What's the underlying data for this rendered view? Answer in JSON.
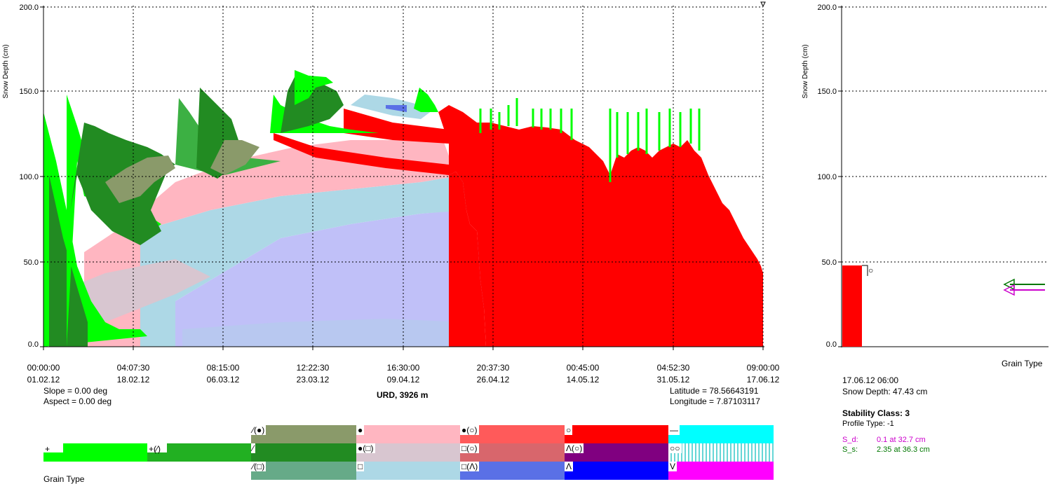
{
  "main_chart": {
    "ylabel": "Snow Depth (cm)",
    "yticks": [
      "200.0",
      "150.0",
      "100.0",
      "50.0",
      "0.0"
    ],
    "xticks_time": [
      "00:00:00",
      "04:07:30",
      "08:15:00",
      "12:22:30",
      "16:30:00",
      "20:37:30",
      "00:45:00",
      "04:52:30",
      "09:00:00"
    ],
    "xticks_date": [
      "01.02.12",
      "18.02.12",
      "06.03.12",
      "23.03.12",
      "09.04.12",
      "26.04.12",
      "14.05.12",
      "31.05.12",
      "17.06.12"
    ],
    "slope": "Slope = 0.00 deg",
    "aspect": "Aspect = 0.00 deg",
    "station": "URD, 3926 m",
    "latitude": "Latitude = 78.56643191",
    "longitude": "Longitude = 7.87103117"
  },
  "profile_chart": {
    "ylabel": "Snow Depth (cm)",
    "yticks": [
      "200.0",
      "150.0",
      "100.0",
      "50.0",
      "0.0"
    ],
    "xlabel": "Grain Type",
    "date": "17.06.12 06:00",
    "snow_depth": "Snow Depth: 47.43 cm",
    "stability_class": "Stability Class: 3",
    "profile_type": "Profile Type: -1",
    "sd_label": "S_d:",
    "sd_value": "0.1 at 32.7 cm",
    "ss_label": "S_s:",
    "ss_value": "2.35 at 36.3 cm",
    "layer_grain": "○"
  },
  "legend": {
    "title": "Grain Type",
    "entries": [
      {
        "symbol": "+",
        "color": "#00ff00"
      },
      {
        "symbol": "+(⁄)",
        "color": "#22b022"
      },
      {
        "symbol": "⁄(●)",
        "color": "#8a9a6a"
      },
      {
        "symbol": "⁄",
        "color": "#228b22"
      },
      {
        "symbol": "⁄(□)",
        "color": "#66aa88"
      },
      {
        "symbol": "●",
        "color": "#ffb6c1"
      },
      {
        "symbol": "●(□)",
        "color": "#d8c6d0"
      },
      {
        "symbol": "□",
        "color": "#add8e6"
      },
      {
        "symbol": "●(○)",
        "color": "#ff5a5a"
      },
      {
        "symbol": "□(○)",
        "color": "#d8666c"
      },
      {
        "symbol": "□(Λ)",
        "color": "#5a70e6"
      },
      {
        "symbol": "○",
        "color": "#ff0000"
      },
      {
        "symbol": "Λ(○)",
        "color": "#800080"
      },
      {
        "symbol": "Λ",
        "color": "#0000ff"
      },
      {
        "symbol": "—",
        "color": "#00ffff"
      },
      {
        "symbol": "○○",
        "color": "#90e8e8"
      },
      {
        "symbol": "V",
        "color": "#ff00ff"
      }
    ]
  },
  "colors": {
    "dd_green": "#00ff00",
    "dark_green": "#228b22",
    "mid_green": "#3cb043",
    "olive": "#8a9a6a",
    "pink": "#ffb6c1",
    "pink_gray": "#d8c6d0",
    "lavender": "#c0c0f8",
    "light_blue": "#add8e6",
    "red": "#ff0000",
    "sd_color": "#cc00cc",
    "ss_color": "#007700"
  },
  "chart_data": [
    {
      "type": "area",
      "title": "",
      "ylabel": "Snow Depth (cm)",
      "ylim": [
        0,
        200
      ],
      "x": [
        "01.02.12 00:00",
        "10.02.12",
        "18.02.12",
        "26.02.12",
        "06.03.12",
        "15.03.12",
        "23.03.12",
        "01.04.12",
        "09.04.12",
        "18.04.12",
        "26.04.12",
        "05.05.12",
        "14.05.12",
        "22.05.12",
        "31.05.12",
        "08.06.12",
        "17.06.12 09:00"
      ],
      "series": [
        {
          "values": [
            135,
            145,
            140,
            140,
            155,
            140,
            160,
            155,
            150,
            148,
            135,
            138,
            140,
            137,
            132,
            115,
            48
          ]
        }
      ],
      "grid": true
    },
    {
      "type": "bar",
      "title": "",
      "ylabel": "Snow Depth (cm)",
      "xlabel": "Grain Type",
      "ylim": [
        0,
        200
      ],
      "categories": [
        "○"
      ],
      "values": [
        47.43
      ],
      "markers": [
        {
          "name": "S_d",
          "value": 0.1,
          "height": 32.7
        },
        {
          "name": "S_s",
          "value": 2.35,
          "height": 36.3
        }
      ],
      "grid": true
    }
  ]
}
